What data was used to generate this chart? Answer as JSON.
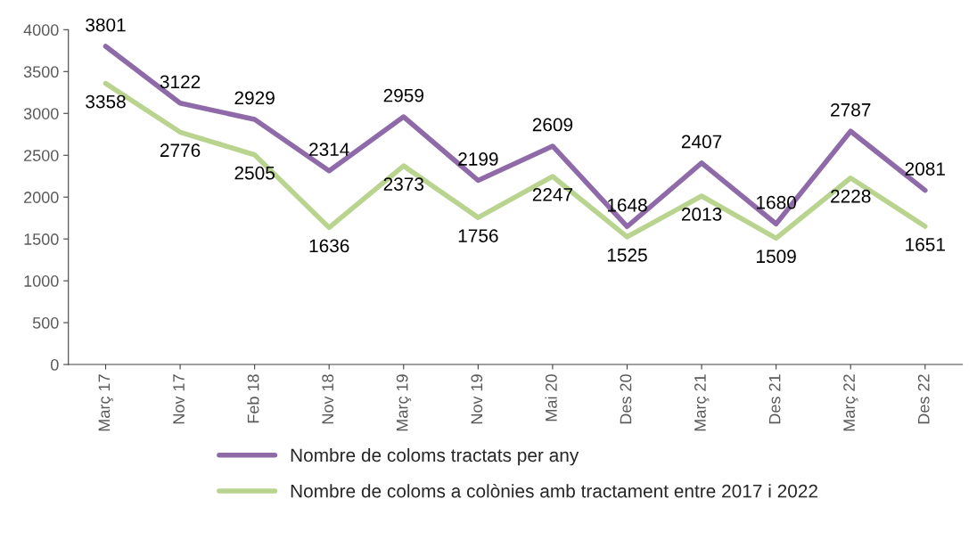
{
  "chart_data": {
    "type": "line",
    "categories": [
      "Març 17",
      "Nov 17",
      "Feb 18",
      "Nov 18",
      "Març 19",
      "Nov 19",
      "Mai 20",
      "Des 20",
      "Març 21",
      "Des 21",
      "Març 22",
      "Des 22"
    ],
    "series": [
      {
        "name": "Nombre de coloms tractats per any",
        "color": "#8f6aa8",
        "values": [
          3801,
          3122,
          2929,
          2314,
          2959,
          2199,
          2609,
          1648,
          2407,
          1680,
          2787,
          2081
        ]
      },
      {
        "name": "Nombre de coloms a colònies amb tractament entre 2017 i 2022",
        "color": "#b9d48f",
        "values": [
          3358,
          2776,
          2505,
          1636,
          2373,
          1756,
          2247,
          1525,
          2013,
          1509,
          2228,
          1651
        ]
      }
    ],
    "ylim": [
      0,
      4000
    ],
    "yticks": [
      0,
      500,
      1000,
      1500,
      2000,
      2500,
      3000,
      3500,
      4000
    ],
    "data_labels": true,
    "grid": false,
    "legend": "bottom",
    "marker": "none",
    "line_style": "solid"
  }
}
